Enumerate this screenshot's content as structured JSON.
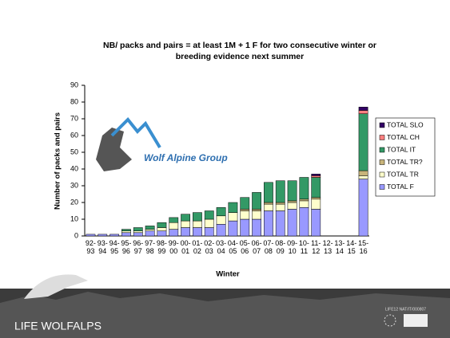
{
  "chart_data": {
    "type": "stacked_bar",
    "title_lines": [
      "NB/ packs and pairs = at least 1M + 1 F for two consecutive winter or",
      "breeding evidence next summer"
    ],
    "ylabel": "Number of packs and pairs",
    "xlabel": "Winter",
    "annotation": "Wolf Alpine Group",
    "categories": [
      "92-93",
      "93-94",
      "94-95",
      "95-96",
      "96-97",
      "97-98",
      "98-99",
      "99-00",
      "00-01",
      "01-02",
      "02-03",
      "03-04",
      "04-05",
      "05-06",
      "06-07",
      "07-08",
      "08-09",
      "09-10",
      "10-11",
      "11-12",
      "12-13",
      "13-14",
      "14-15",
      "15-16"
    ],
    "series": [
      {
        "name": "TOTAL F",
        "color": "#9999ff",
        "values": [
          1,
          1,
          1,
          2,
          2,
          3,
          3,
          4,
          5,
          5,
          5,
          7,
          9,
          10,
          10,
          15,
          15,
          16,
          17,
          16,
          null,
          null,
          null,
          34
        ]
      },
      {
        "name": "TOTAL TR",
        "color": "#ffffcc",
        "values": [
          0,
          0,
          0,
          1,
          1,
          1,
          2,
          4,
          4,
          4,
          5,
          5,
          5,
          5,
          5,
          4,
          4,
          4,
          4,
          6,
          null,
          null,
          null,
          2
        ]
      },
      {
        "name": "TOTAL TR?",
        "color": "#c8b47a",
        "values": [
          0,
          0,
          0,
          0,
          0,
          0,
          0,
          0,
          0,
          0,
          0,
          0,
          0,
          1,
          1,
          1,
          1,
          1,
          1,
          1,
          null,
          null,
          null,
          3
        ]
      },
      {
        "name": "TOTAL IT",
        "color": "#339966",
        "values": [
          0,
          0,
          0,
          1,
          2,
          2,
          3,
          3,
          4,
          5,
          5,
          5,
          6,
          7,
          10,
          12,
          13,
          12,
          13,
          12,
          null,
          null,
          null,
          34
        ]
      },
      {
        "name": "TOTAL CH",
        "color": "#ff8080",
        "values": [
          0,
          0,
          0,
          0,
          0,
          0,
          0,
          0,
          0,
          0,
          0,
          0,
          0,
          0,
          0,
          0,
          0,
          0,
          0,
          1,
          null,
          null,
          null,
          2
        ]
      },
      {
        "name": "TOTAL SLO",
        "color": "#330066",
        "values": [
          0,
          0,
          0,
          0,
          0,
          0,
          0,
          0,
          0,
          0,
          0,
          0,
          0,
          0,
          0,
          0,
          0,
          0,
          0,
          1,
          null,
          null,
          null,
          2
        ]
      }
    ],
    "ylim": [
      0,
      90
    ],
    "yticks": [
      0,
      10,
      20,
      30,
      40,
      50,
      60,
      70,
      80,
      90
    ]
  },
  "footer": {
    "logo": "LIFE WOLFALPS",
    "project": "LIFE12 NAT/IT/000807"
  }
}
